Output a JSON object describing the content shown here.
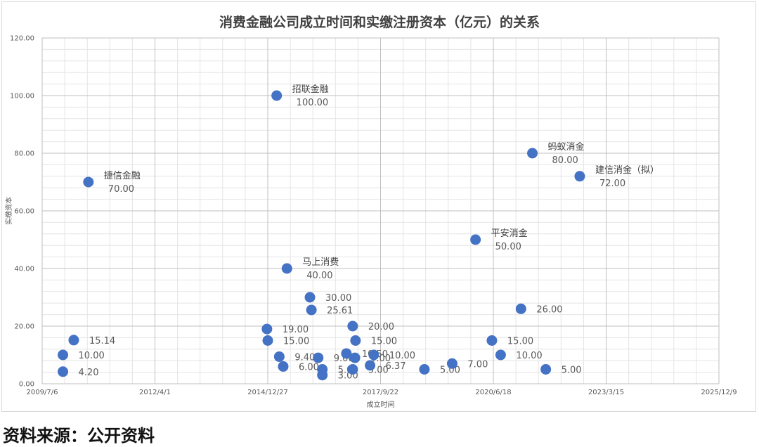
{
  "chart_data": {
    "type": "scatter",
    "title": "消费金融公司成立时间和实缴注册资本（亿元）的关系",
    "xlabel": "成立时间",
    "ylabel": "实缴资本",
    "ylim": [
      0,
      120
    ],
    "xlim": [
      "2009/7/6",
      "2025/12/9"
    ],
    "x_ticks": [
      "2009/7/6",
      "2012/4/1",
      "2014/12/27",
      "2017/9/22",
      "2020/6/18",
      "2023/3/15",
      "2025/12/9"
    ],
    "y_ticks": [
      "0.00",
      "20.00",
      "40.00",
      "60.00",
      "80.00",
      "100.00",
      "120.00"
    ],
    "grid": true,
    "marker_color": "#4472c4",
    "points": [
      {
        "x": "2010/1/6",
        "y": 10.0,
        "label": "10.00"
      },
      {
        "x": "2010/1/6",
        "y": 4.2,
        "label": "4.20"
      },
      {
        "x": "2010/4/12",
        "y": 15.14,
        "label": "15.14"
      },
      {
        "x": "2010/8/20",
        "y": 70.0,
        "name": "捷信金融",
        "label": "70.00"
      },
      {
        "x": "2014/12/20",
        "y": 19.0,
        "label": "19.00"
      },
      {
        "x": "2014/12/27",
        "y": 15.0,
        "label": "15.00"
      },
      {
        "x": "2015/3/16",
        "y": 100.0,
        "name": "招联金融",
        "label": "100.00"
      },
      {
        "x": "2015/4/8",
        "y": 9.4,
        "label": "9.40"
      },
      {
        "x": "2015/5/13",
        "y": 6.0,
        "label": "6.00"
      },
      {
        "x": "2015/6/15",
        "y": 40.0,
        "name": "马上消费",
        "label": "40.00"
      },
      {
        "x": "2016/1/5",
        "y": 30.0,
        "label": "30.00"
      },
      {
        "x": "2016/1/18",
        "y": 25.61,
        "label": "25.61"
      },
      {
        "x": "2016/3/18",
        "y": 9.0,
        "label": "9.00"
      },
      {
        "x": "2016/4/24",
        "y": 5.0,
        "label": "5.00"
      },
      {
        "x": "2016/4/24",
        "y": 3.0,
        "label": "3.00"
      },
      {
        "x": "2016/11/23",
        "y": 10.5,
        "label": "10.50"
      },
      {
        "x": "2017/1/18",
        "y": 5.0,
        "label": "5.00"
      },
      {
        "x": "2017/1/18",
        "y": 20.0,
        "label": "20.00"
      },
      {
        "x": "2017/2/7",
        "y": 9.0,
        "label": "9.00"
      },
      {
        "x": "2017/2/12",
        "y": 15.0,
        "label": "15.00"
      },
      {
        "x": "2017/6/21",
        "y": 6.37,
        "label": "6.37"
      },
      {
        "x": "2017/7/24",
        "y": 10.0,
        "label": "10.00"
      },
      {
        "x": "2018/10/16",
        "y": 5.0,
        "label": "5.00"
      },
      {
        "x": "2019/6/19",
        "y": 7.0,
        "label": "7.00"
      },
      {
        "x": "2020/1/12",
        "y": 50.0,
        "name": "平安消金",
        "label": "50.00"
      },
      {
        "x": "2020/6/5",
        "y": 15.0,
        "label": "15.00"
      },
      {
        "x": "2020/8/22",
        "y": 10.0,
        "label": "10.00"
      },
      {
        "x": "2021/2/18",
        "y": 26.0,
        "label": "26.00"
      },
      {
        "x": "2021/5/30",
        "y": 80.0,
        "name": "蚂蚁消金",
        "label": "80.00"
      },
      {
        "x": "2021/9/26",
        "y": 5.0,
        "label": "5.00"
      },
      {
        "x": "2022/7/24",
        "y": 72.0,
        "name": "建信消金（拟）",
        "label": "72.00"
      }
    ]
  },
  "footer": {
    "source": "资料来源：公开资料"
  }
}
